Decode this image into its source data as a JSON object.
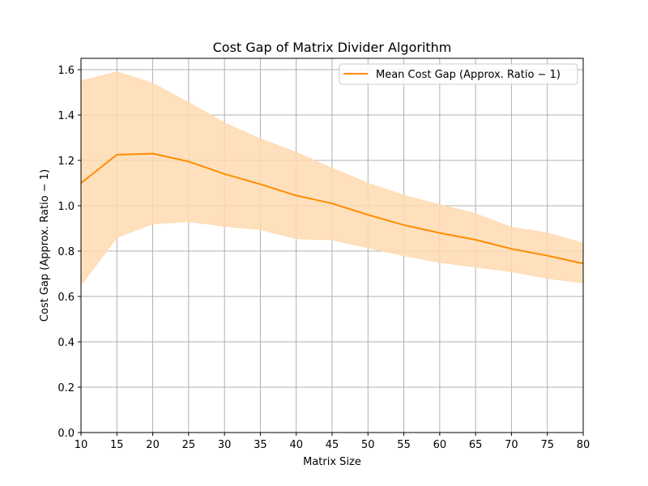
{
  "chart_data": {
    "type": "line",
    "title": "Cost Gap of Matrix Divider Algorithm",
    "xlabel": "Matrix Size",
    "ylabel": "Cost Gap (Approx. Ratio − 1)",
    "xlim": [
      10,
      80
    ],
    "ylim": [
      0.0,
      1.65
    ],
    "xticks": [
      10,
      15,
      20,
      25,
      30,
      35,
      40,
      45,
      50,
      55,
      60,
      65,
      70,
      75,
      80
    ],
    "yticks": [
      0.0,
      0.2,
      0.4,
      0.6,
      0.8,
      1.0,
      1.2,
      1.4,
      1.6
    ],
    "ytick_labels": [
      "0.0",
      "0.2",
      "0.4",
      "0.6",
      "0.8",
      "1.0",
      "1.2",
      "1.4",
      "1.6"
    ],
    "grid": true,
    "legend_position": "top-right",
    "x": [
      10,
      15,
      20,
      25,
      30,
      35,
      40,
      45,
      50,
      55,
      60,
      65,
      70,
      75,
      80
    ],
    "series": [
      {
        "name": "Mean Cost Gap (Approx. Ratio − 1)",
        "color": "#ff8c00",
        "values": [
          1.1,
          1.225,
          1.23,
          1.195,
          1.14,
          1.095,
          1.045,
          1.01,
          0.96,
          0.915,
          0.88,
          0.85,
          0.81,
          0.78,
          0.745
        ]
      }
    ],
    "band": {
      "color": "#ffdab0",
      "lower": [
        0.65,
        0.86,
        0.92,
        0.93,
        0.91,
        0.895,
        0.855,
        0.85,
        0.815,
        0.78,
        0.75,
        0.73,
        0.71,
        0.68,
        0.66
      ],
      "upper": [
        1.55,
        1.59,
        1.54,
        1.455,
        1.365,
        1.295,
        1.235,
        1.165,
        1.1,
        1.045,
        1.005,
        0.965,
        0.905,
        0.88,
        0.835
      ]
    }
  }
}
